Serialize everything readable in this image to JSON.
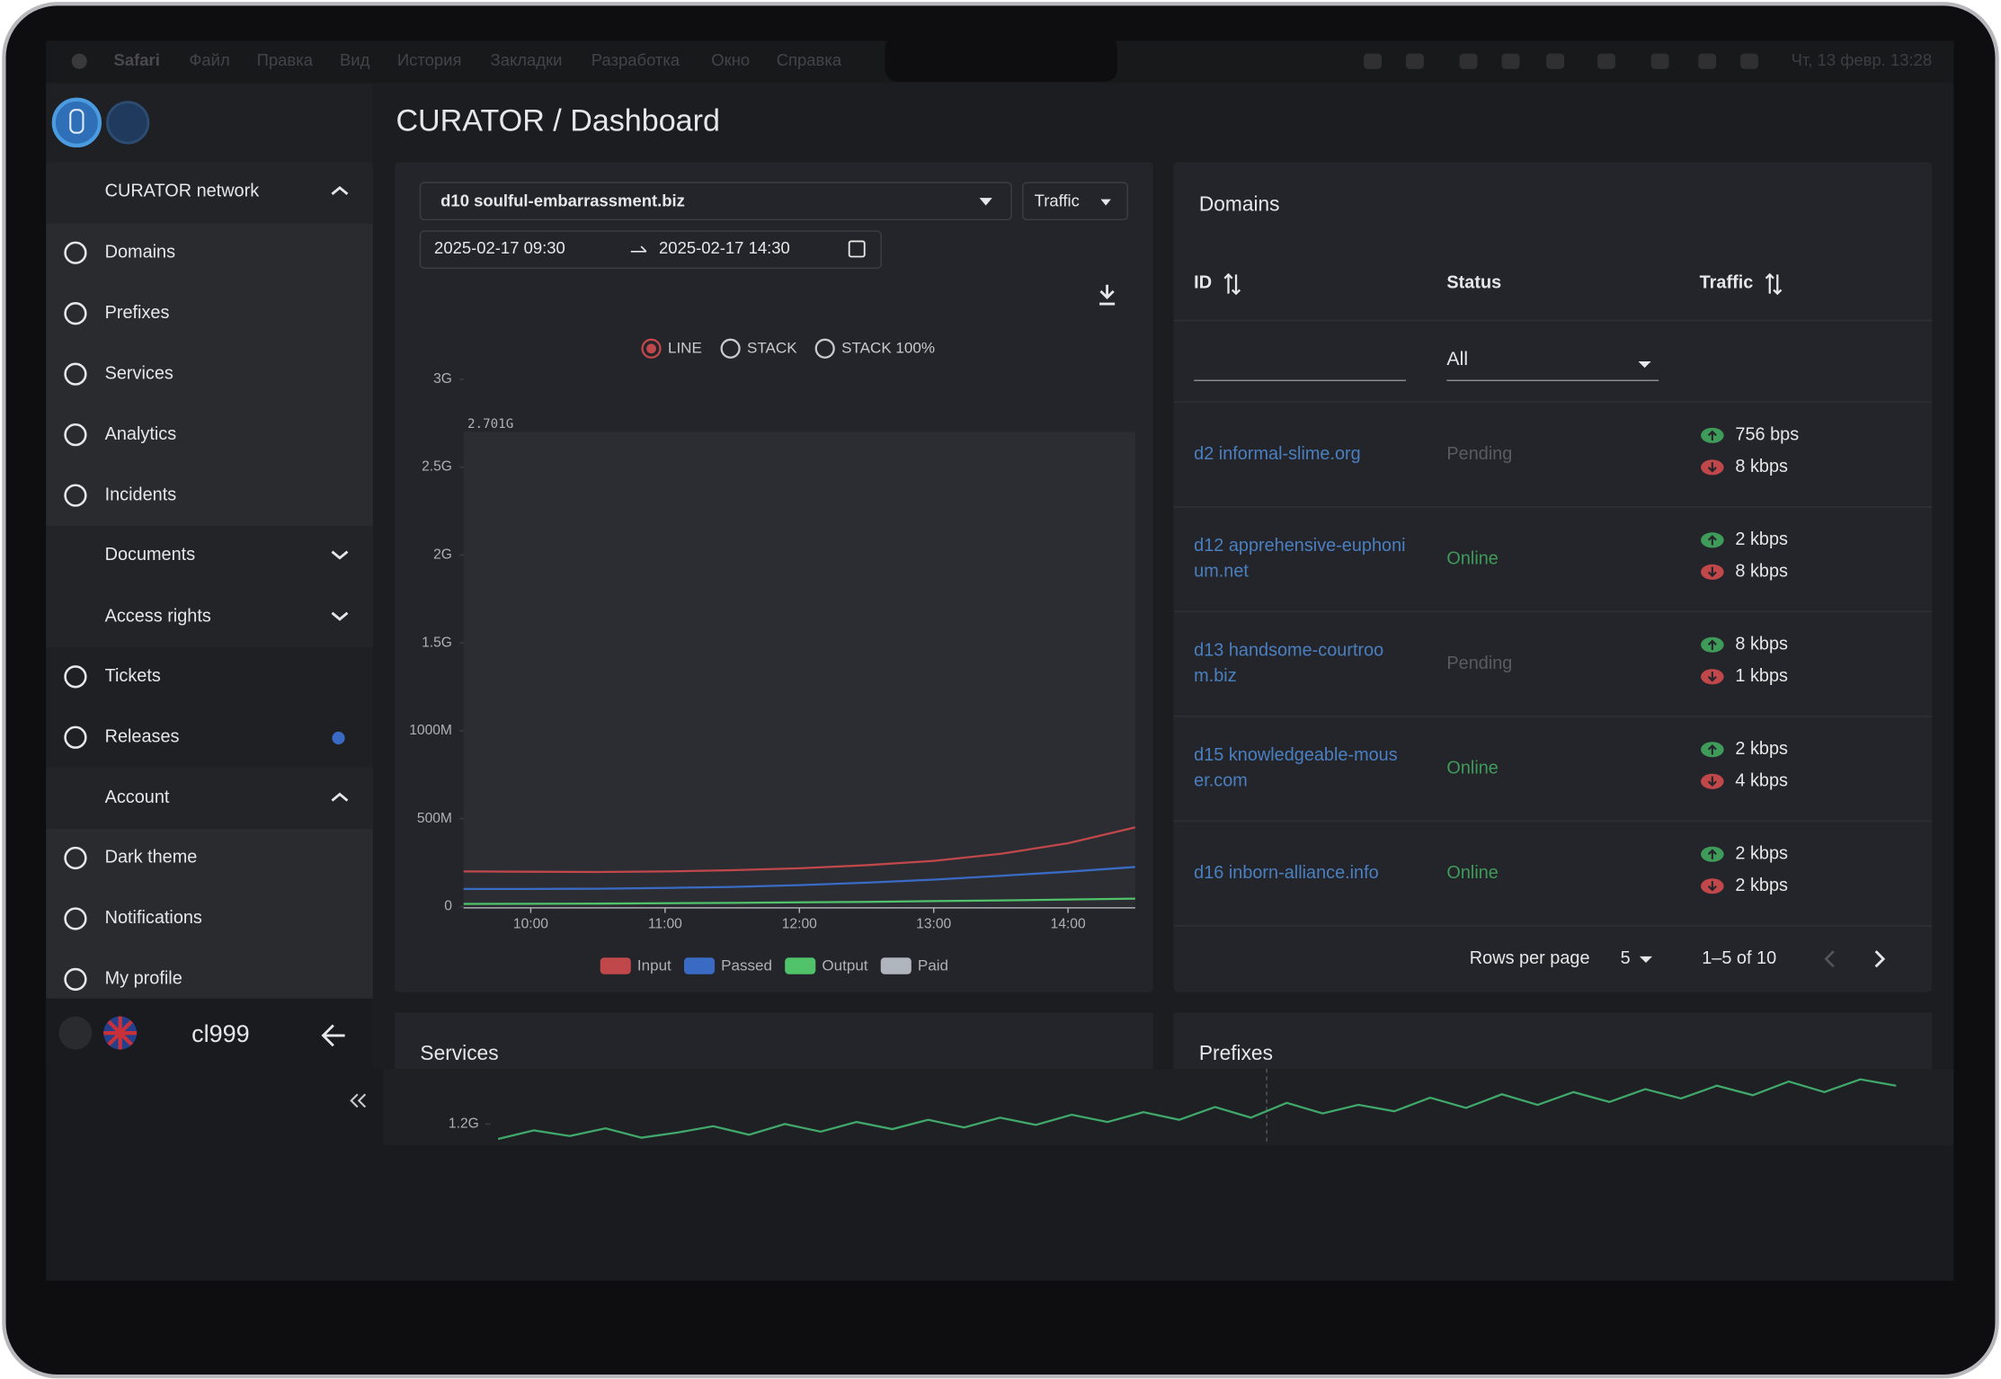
{
  "menubar": {
    "app": "Safari",
    "items": [
      "Файл",
      "Правка",
      "Вид",
      "История",
      "Закладки",
      "Разработка",
      "Окно",
      "Справка"
    ],
    "clock": "Чт, 13 февр. 13:28"
  },
  "sidebar": {
    "network": "CURATOR network",
    "items": [
      "Domains",
      "Prefixes",
      "Services",
      "Analytics",
      "Incidents"
    ],
    "documents": "Documents",
    "access_rights": "Access rights",
    "items2": [
      "Tickets",
      "Releases"
    ],
    "account": "Account",
    "account_items": [
      "Dark theme",
      "Notifications",
      "My profile"
    ],
    "user": "cl999"
  },
  "header": {
    "title": "CURATOR / Dashboard"
  },
  "traffic_panel": {
    "domain_select": "d10 soulful-embarrassment.biz",
    "metric_select": "Traffic",
    "date_from": "2025-02-17 09:30",
    "date_to": "2025-02-17 14:30",
    "modes": [
      "LINE",
      "STACK",
      "STACK 100%"
    ]
  },
  "chart_data": [
    {
      "type": "line",
      "annotation": "2.701G",
      "annotation_value": 2701000000,
      "x": [
        "09:30",
        "10:00",
        "10:30",
        "11:00",
        "11:30",
        "12:00",
        "12:30",
        "13:00",
        "13:30",
        "14:00",
        "14:30"
      ],
      "xticks": [
        "10:00",
        "11:00",
        "12:00",
        "13:00",
        "14:00"
      ],
      "ylim": [
        0,
        3000000000
      ],
      "yticks": [
        0,
        {
          "value": 500000000,
          "label": "500M"
        },
        {
          "value": 1000000000,
          "label": "1000M"
        },
        {
          "value": 1500000000,
          "label": "1.5G"
        },
        {
          "value": 2000000000,
          "label": "2G"
        },
        {
          "value": 2500000000,
          "label": "2.5G"
        },
        {
          "value": 3000000000,
          "label": "3G"
        }
      ],
      "series": [
        {
          "name": "Input",
          "color": "#c0474a",
          "values": [
            200000000,
            198000000,
            197000000,
            200000000,
            207000000,
            218000000,
            235000000,
            260000000,
            300000000,
            360000000,
            450000000
          ]
        },
        {
          "name": "Passed",
          "color": "#3a6bc4",
          "values": [
            100000000,
            100000000,
            102000000,
            106000000,
            112000000,
            122000000,
            136000000,
            153000000,
            175000000,
            198000000,
            225000000
          ]
        },
        {
          "name": "Output",
          "color": "#4fc26a",
          "values": [
            15000000,
            16000000,
            17000000,
            19000000,
            21000000,
            24000000,
            27000000,
            31000000,
            35000000,
            40000000,
            45000000
          ]
        },
        {
          "name": "Paid",
          "color": "#b0b4bc",
          "values": [
            null,
            null,
            null,
            null,
            null,
            null,
            null,
            null,
            null,
            null,
            null
          ]
        }
      ]
    },
    {
      "type": "line",
      "title": "Services",
      "ylim": [
        1150000000,
        1330000000
      ],
      "yticks": [
        {
          "value": 1200000000,
          "label": "1.2G"
        }
      ],
      "color": "#3fa86a",
      "values": [
        1165000000,
        1185000000,
        1172000000,
        1190000000,
        1168000000,
        1180000000,
        1195000000,
        1175000000,
        1200000000,
        1182000000,
        1205000000,
        1188000000,
        1210000000,
        1192000000,
        1215000000,
        1198000000,
        1222000000,
        1205000000,
        1228000000,
        1210000000,
        1240000000,
        1215000000,
        1250000000,
        1225000000,
        1245000000,
        1230000000,
        1262000000,
        1238000000,
        1270000000,
        1245000000,
        1275000000,
        1252000000,
        1282000000,
        1260000000,
        1290000000,
        1268000000,
        1300000000,
        1275000000,
        1305000000,
        1290000000
      ]
    }
  ],
  "domains_table": {
    "title": "Domains",
    "columns": [
      "ID",
      "Status",
      "Traffic"
    ],
    "status_filter": "All",
    "rows": [
      {
        "id_lines": [
          "d2 informal-slime.org"
        ],
        "status": "Pending",
        "up": "756 bps",
        "down": "8 kbps"
      },
      {
        "id_lines": [
          "d12 apprehensive-euphoni",
          "um.net"
        ],
        "status": "Online",
        "up": "2 kbps",
        "down": "8 kbps"
      },
      {
        "id_lines": [
          "d13 handsome-courtroo",
          "m.biz"
        ],
        "status": "Pending",
        "up": "8 kbps",
        "down": "1 kbps"
      },
      {
        "id_lines": [
          "d15 knowledgeable-mous",
          "er.com"
        ],
        "status": "Online",
        "up": "2 kbps",
        "down": "4 kbps"
      },
      {
        "id_lines": [
          "d16 inborn-alliance.info"
        ],
        "status": "Online",
        "up": "2 kbps",
        "down": "2 kbps"
      }
    ],
    "rows_per_page_label": "Rows per page",
    "rows_per_page": 5,
    "range": "1–5 of 10"
  },
  "prefixes_panel": {
    "title": "Prefixes"
  }
}
